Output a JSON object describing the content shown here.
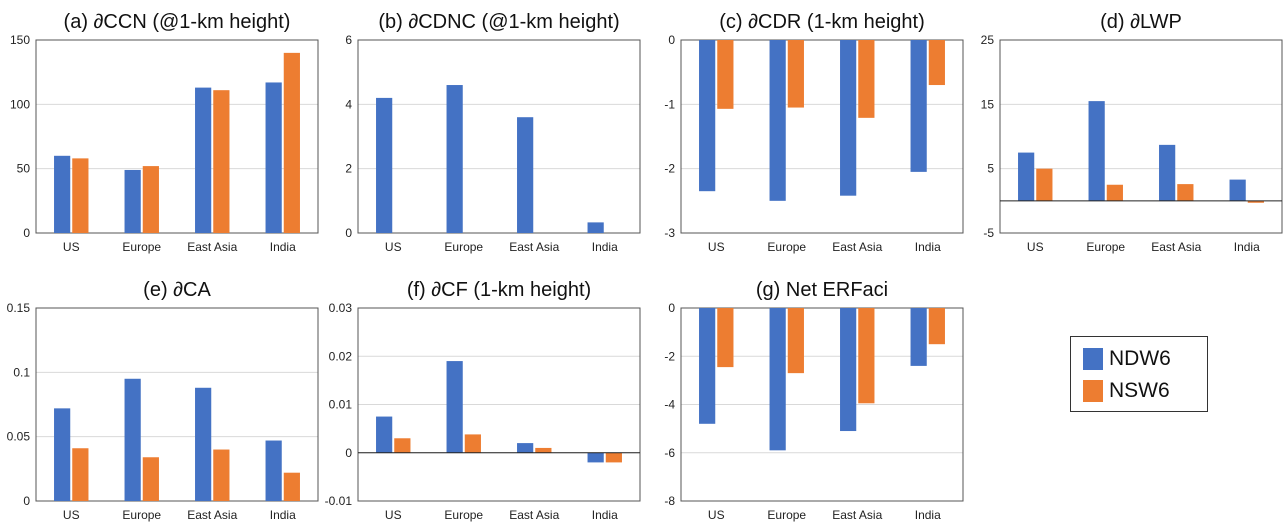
{
  "categories": [
    "US",
    "Europe",
    "East Asia",
    "India"
  ],
  "colors": {
    "NDW6": "#4472c4",
    "NSW6": "#ed7d31"
  },
  "legend": {
    "items": [
      {
        "label": "NDW6"
      },
      {
        "label": "NSW6"
      }
    ]
  },
  "chart_data": [
    {
      "type": "bar",
      "title": "(a) ∂CCN (@1-km height)",
      "ylim": [
        0,
        150
      ],
      "yticks": [
        "0",
        "50",
        "100",
        "150"
      ],
      "series": [
        {
          "name": "NDW6",
          "values": [
            60,
            49,
            113,
            117
          ]
        },
        {
          "name": "NSW6",
          "values": [
            58,
            52,
            111,
            140
          ]
        }
      ]
    },
    {
      "type": "bar",
      "title": "(b) ∂CDNC (@1-km height)",
      "ylim": [
        0,
        6
      ],
      "yticks": [
        "0",
        "2",
        "4",
        "6"
      ],
      "series": [
        {
          "name": "NDW6",
          "values": [
            4.2,
            4.6,
            3.6,
            0.33
          ]
        },
        {
          "name": "NSW6",
          "values": [
            0,
            0,
            0,
            0
          ]
        }
      ]
    },
    {
      "type": "bar",
      "title": "(c) ∂CDR (1-km height)",
      "ylim": [
        -3,
        0
      ],
      "yticks": [
        "-3",
        "-2",
        "-1",
        "0"
      ],
      "series": [
        {
          "name": "NDW6",
          "values": [
            -2.35,
            -2.5,
            -2.42,
            -2.05
          ]
        },
        {
          "name": "NSW6",
          "values": [
            -1.07,
            -1.05,
            -1.21,
            -0.7
          ]
        }
      ]
    },
    {
      "type": "bar",
      "title": "(d) ∂LWP",
      "ylim": [
        -5,
        25
      ],
      "yticks": [
        "-5",
        "5",
        "15",
        "25"
      ],
      "series": [
        {
          "name": "NDW6",
          "values": [
            7.5,
            15.5,
            8.7,
            3.3
          ]
        },
        {
          "name": "NSW6",
          "values": [
            5,
            2.5,
            2.6,
            -0.3
          ]
        }
      ]
    },
    {
      "type": "bar",
      "title": "(e) ∂CA",
      "ylim": [
        0,
        0.15
      ],
      "yticks": [
        "0",
        "0.05",
        "0.1",
        "0.15"
      ],
      "series": [
        {
          "name": "NDW6",
          "values": [
            0.072,
            0.095,
            0.088,
            0.047
          ]
        },
        {
          "name": "NSW6",
          "values": [
            0.041,
            0.034,
            0.04,
            0.022
          ]
        }
      ]
    },
    {
      "type": "bar",
      "title": "(f) ∂CF (1-km height)",
      "ylim": [
        -0.01,
        0.03
      ],
      "yticks": [
        "-0.01",
        "0",
        "0.01",
        "0.02",
        "0.03"
      ],
      "series": [
        {
          "name": "NDW6",
          "values": [
            0.0075,
            0.019,
            0.002,
            -0.002
          ]
        },
        {
          "name": "NSW6",
          "values": [
            0.003,
            0.0038,
            0.001,
            -0.002
          ]
        }
      ]
    },
    {
      "type": "bar",
      "title": "(g) Net ERFaci",
      "ylim": [
        -8,
        0
      ],
      "yticks": [
        "-8",
        "-6",
        "-4",
        "-2",
        "0"
      ],
      "series": [
        {
          "name": "NDW6",
          "values": [
            -4.8,
            -5.9,
            -5.1,
            -2.4
          ]
        },
        {
          "name": "NSW6",
          "values": [
            -2.45,
            -2.7,
            -3.95,
            -1.5
          ]
        }
      ]
    }
  ]
}
